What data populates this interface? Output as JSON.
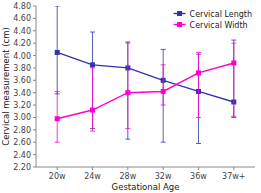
{
  "chart_data": {
    "type": "line",
    "xlabel": "Gestational Age",
    "ylabel": "Cervical measurement (cm)",
    "categories": [
      "20w",
      "24w",
      "28w",
      "32w",
      "36w",
      "37w+"
    ],
    "series": [
      {
        "name": "Cervical Length",
        "color": "#3333AA",
        "marker": "square",
        "line_style": "solid",
        "values": [
          4.05,
          3.85,
          3.8,
          3.6,
          3.42,
          3.25
        ],
        "error_plus": [
          0.75,
          0.53,
          0.42,
          0.5,
          0.6,
          1.0
        ],
        "error_minus": [
          0.67,
          1.03,
          1.15,
          1.0,
          0.84,
          0.25
        ]
      },
      {
        "name": "Cervical Width",
        "color": "#FF00CC",
        "marker": "square",
        "line_style": "solid",
        "values": [
          2.98,
          3.12,
          3.4,
          3.42,
          3.72,
          3.88
        ],
        "error_plus": [
          0.44,
          0.68,
          0.8,
          0.43,
          0.33,
          0.32
        ],
        "error_minus": [
          0.38,
          0.34,
          0.58,
          0.22,
          0.72,
          0.86
        ]
      }
    ],
    "ylim": [
      2.2,
      4.8
    ],
    "yticks": [
      {
        "value": 2.2,
        "label": "2.20"
      },
      {
        "value": 2.4,
        "label": "2.40"
      },
      {
        "value": 2.6,
        "label": "2.60"
      },
      {
        "value": 2.8,
        "label": "2.80"
      },
      {
        "value": 3.0,
        "label": "3.00"
      },
      {
        "value": 3.2,
        "label": "3.20"
      },
      {
        "value": 3.4,
        "label": "3.40"
      },
      {
        "value": 3.6,
        "label": "3.60"
      },
      {
        "value": 3.8,
        "label": "3.80"
      },
      {
        "value": 4.0,
        "label": "4.00"
      },
      {
        "value": 4.2,
        "label": "4.20"
      },
      {
        "value": 4.4,
        "label": "4.40"
      },
      {
        "value": 4.6,
        "label": "4.60"
      },
      {
        "value": 4.8,
        "label": "4.80"
      }
    ],
    "legend": "upper right",
    "grid": false
  }
}
